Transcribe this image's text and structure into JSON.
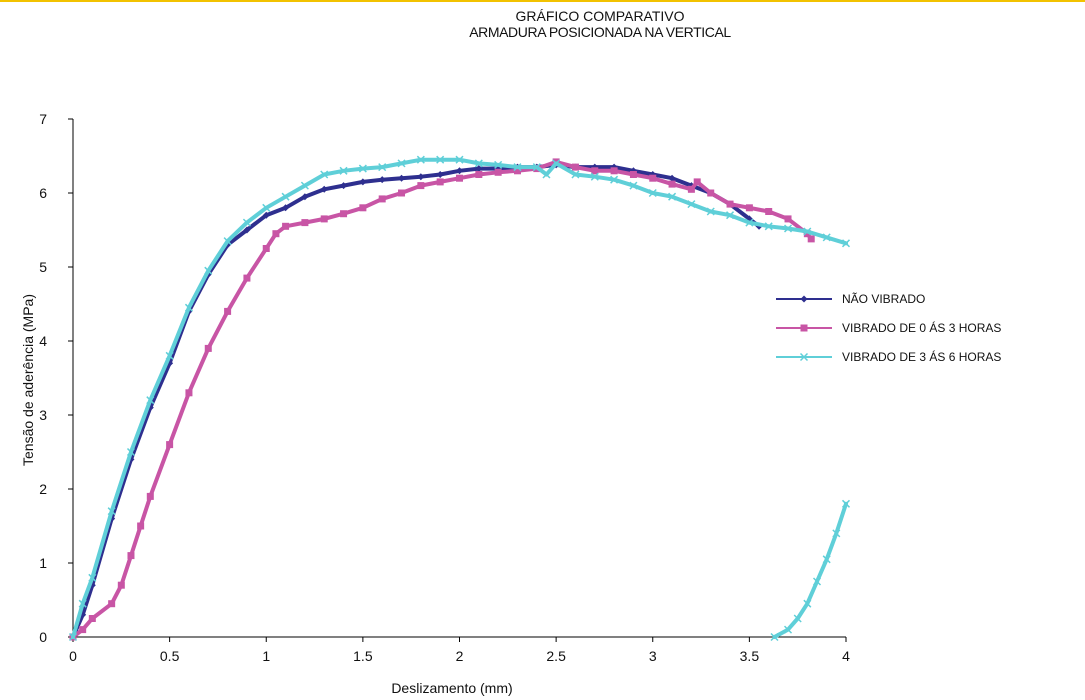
{
  "chart_data": {
    "type": "line",
    "title": "GRÁFICO COMPARATIVO",
    "subtitle": "ARMADURA POSICIONADA NA VERTICAL",
    "xlabel": "Deslizamento (mm)",
    "ylabel": "Tensão de aderência (MPa)",
    "xlim": [
      0,
      4
    ],
    "ylim": [
      0,
      7
    ],
    "xticks": [
      "0",
      "0.5",
      "1",
      "1.5",
      "2",
      "2.5",
      "3",
      "3.5",
      "4"
    ],
    "yticks": [
      "0",
      "1",
      "2",
      "3",
      "4",
      "5",
      "6",
      "7"
    ],
    "grid": false,
    "legend_position": "right",
    "series": [
      {
        "name": "NÃO VIBRADO",
        "color": "#2e2f8f",
        "marker": "diamond",
        "segments": [
          [
            [
              0,
              0
            ],
            [
              0.05,
              0.3
            ],
            [
              0.1,
              0.7
            ],
            [
              0.2,
              1.6
            ],
            [
              0.3,
              2.4
            ],
            [
              0.4,
              3.1
            ],
            [
              0.5,
              3.7
            ],
            [
              0.6,
              4.4
            ],
            [
              0.7,
              4.9
            ],
            [
              0.8,
              5.3
            ],
            [
              0.9,
              5.5
            ],
            [
              1.0,
              5.7
            ],
            [
              1.1,
              5.8
            ],
            [
              1.2,
              5.95
            ],
            [
              1.3,
              6.05
            ],
            [
              1.4,
              6.1
            ],
            [
              1.5,
              6.15
            ],
            [
              1.6,
              6.18
            ],
            [
              1.7,
              6.2
            ],
            [
              1.8,
              6.22
            ],
            [
              1.9,
              6.25
            ],
            [
              2.0,
              6.3
            ],
            [
              2.1,
              6.33
            ],
            [
              2.2,
              6.33
            ],
            [
              2.3,
              6.35
            ],
            [
              2.4,
              6.35
            ],
            [
              2.5,
              6.38
            ],
            [
              2.6,
              6.35
            ],
            [
              2.7,
              6.35
            ],
            [
              2.8,
              6.35
            ],
            [
              2.9,
              6.3
            ],
            [
              3.0,
              6.25
            ],
            [
              3.1,
              6.2
            ],
            [
              3.2,
              6.1
            ],
            [
              3.3,
              6.0
            ],
            [
              3.4,
              5.85
            ],
            [
              3.5,
              5.65
            ],
            [
              3.55,
              5.55
            ]
          ]
        ]
      },
      {
        "name": "VIBRADO DE 0 ÁS 3 HORAS",
        "color": "#c855a5",
        "marker": "square",
        "segments": [
          [
            [
              0,
              0
            ],
            [
              0.05,
              0.1
            ],
            [
              0.1,
              0.25
            ],
            [
              0.2,
              0.45
            ],
            [
              0.25,
              0.7
            ],
            [
              0.3,
              1.1
            ],
            [
              0.35,
              1.5
            ],
            [
              0.4,
              1.9
            ],
            [
              0.5,
              2.6
            ],
            [
              0.6,
              3.3
            ],
            [
              0.7,
              3.9
            ],
            [
              0.8,
              4.4
            ],
            [
              0.9,
              4.85
            ],
            [
              1.0,
              5.25
            ],
            [
              1.05,
              5.45
            ],
            [
              1.1,
              5.55
            ],
            [
              1.2,
              5.6
            ],
            [
              1.3,
              5.65
            ],
            [
              1.4,
              5.72
            ],
            [
              1.5,
              5.8
            ],
            [
              1.6,
              5.92
            ],
            [
              1.7,
              6.0
            ],
            [
              1.8,
              6.1
            ],
            [
              1.9,
              6.15
            ],
            [
              2.0,
              6.2
            ],
            [
              2.1,
              6.25
            ],
            [
              2.2,
              6.28
            ],
            [
              2.3,
              6.3
            ],
            [
              2.4,
              6.33
            ],
            [
              2.5,
              6.42
            ],
            [
              2.6,
              6.35
            ],
            [
              2.7,
              6.3
            ],
            [
              2.8,
              6.3
            ],
            [
              2.9,
              6.25
            ],
            [
              3.0,
              6.2
            ],
            [
              3.1,
              6.12
            ],
            [
              3.2,
              6.05
            ],
            [
              3.23,
              6.15
            ],
            [
              3.3,
              6.0
            ],
            [
              3.4,
              5.85
            ],
            [
              3.5,
              5.8
            ],
            [
              3.6,
              5.75
            ],
            [
              3.7,
              5.65
            ],
            [
              3.8,
              5.45
            ],
            [
              3.82,
              5.38
            ]
          ]
        ]
      },
      {
        "name": "VIBRADO DE 3 ÁS 6 HORAS",
        "color": "#5fcfd8",
        "marker": "x",
        "segments": [
          [
            [
              0,
              0
            ],
            [
              0.05,
              0.45
            ],
            [
              0.1,
              0.8
            ],
            [
              0.2,
              1.7
            ],
            [
              0.3,
              2.5
            ],
            [
              0.4,
              3.2
            ],
            [
              0.5,
              3.8
            ],
            [
              0.6,
              4.45
            ],
            [
              0.7,
              4.95
            ],
            [
              0.8,
              5.35
            ],
            [
              0.9,
              5.6
            ],
            [
              1.0,
              5.8
            ],
            [
              1.1,
              5.95
            ],
            [
              1.2,
              6.1
            ],
            [
              1.3,
              6.25
            ],
            [
              1.4,
              6.3
            ],
            [
              1.5,
              6.33
            ],
            [
              1.6,
              6.35
            ],
            [
              1.7,
              6.4
            ],
            [
              1.8,
              6.45
            ],
            [
              1.9,
              6.45
            ],
            [
              2.0,
              6.45
            ],
            [
              2.1,
              6.4
            ],
            [
              2.2,
              6.38
            ],
            [
              2.3,
              6.35
            ],
            [
              2.4,
              6.35
            ],
            [
              2.45,
              6.25
            ],
            [
              2.5,
              6.4
            ],
            [
              2.6,
              6.25
            ],
            [
              2.7,
              6.22
            ],
            [
              2.8,
              6.18
            ],
            [
              2.9,
              6.1
            ],
            [
              3.0,
              6.0
            ],
            [
              3.1,
              5.95
            ],
            [
              3.2,
              5.85
            ],
            [
              3.3,
              5.75
            ],
            [
              3.4,
              5.7
            ],
            [
              3.5,
              5.6
            ],
            [
              3.6,
              5.55
            ],
            [
              3.7,
              5.52
            ],
            [
              3.8,
              5.48
            ],
            [
              3.9,
              5.4
            ],
            [
              4.0,
              5.32
            ]
          ],
          [
            [
              3.63,
              0.0
            ],
            [
              3.7,
              0.1
            ],
            [
              3.75,
              0.25
            ],
            [
              3.8,
              0.45
            ],
            [
              3.85,
              0.75
            ],
            [
              3.9,
              1.05
            ],
            [
              3.95,
              1.4
            ],
            [
              4.0,
              1.8
            ]
          ]
        ]
      }
    ]
  }
}
